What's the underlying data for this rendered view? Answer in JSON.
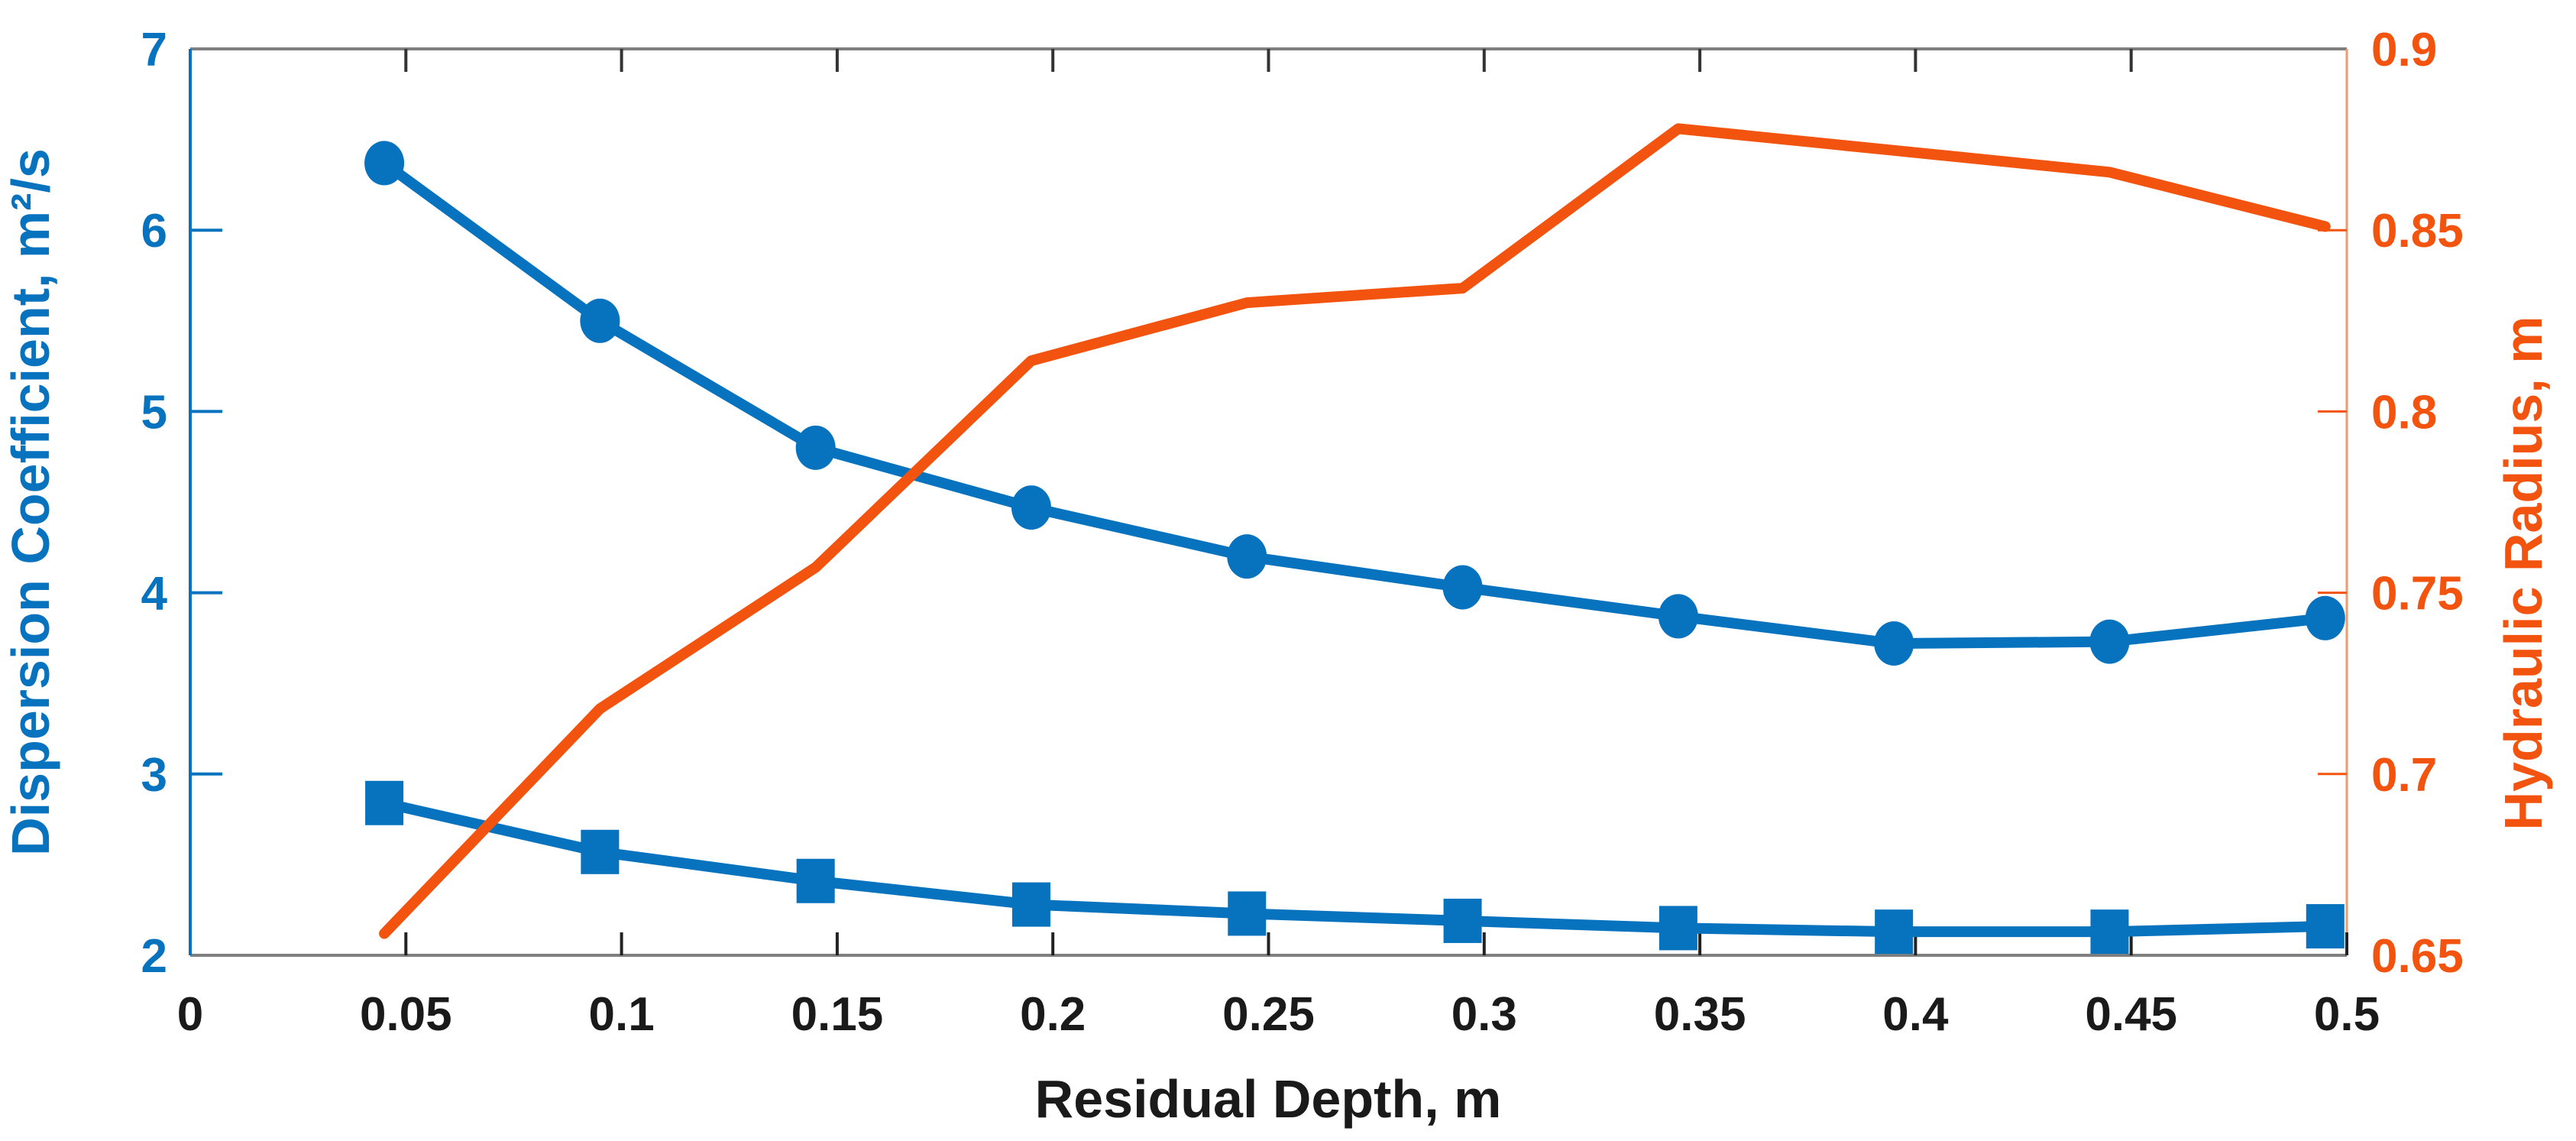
{
  "chart_data": {
    "type": "line",
    "title": "",
    "xlabel": "Residual Depth, m",
    "ylabel_left": "Dispersion Coefficient, m²/s",
    "ylabel_right": "Hydraulic Radius, m",
    "xlim": [
      0,
      0.5
    ],
    "ylim_left": [
      2,
      7
    ],
    "ylim_right": [
      0.65,
      0.9
    ],
    "grid": "off",
    "legend": "none",
    "box": "on",
    "x_tick_labels": [
      {
        "v": 0.0,
        "t": "0"
      },
      {
        "v": 0.05,
        "t": "0.05"
      },
      {
        "v": 0.1,
        "t": "0.1"
      },
      {
        "v": 0.15,
        "t": "0.15"
      },
      {
        "v": 0.2,
        "t": "0.2"
      },
      {
        "v": 0.25,
        "t": "0.25"
      },
      {
        "v": 0.3,
        "t": "0.3"
      },
      {
        "v": 0.35,
        "t": "0.35"
      },
      {
        "v": 0.4,
        "t": "0.4"
      },
      {
        "v": 0.45,
        "t": "0.45"
      },
      {
        "v": 0.5,
        "t": "0.5"
      }
    ],
    "x_tick_marks_bottom": [
      0.05,
      0.1,
      0.15,
      0.2,
      0.25,
      0.3,
      0.35,
      0.4,
      0.45,
      0.5
    ],
    "x_tick_marks_top": [
      0.05,
      0.1,
      0.15,
      0.2,
      0.25,
      0.3,
      0.35,
      0.4,
      0.45
    ],
    "left_tick_labels": [
      {
        "v": 2,
        "t": "2"
      },
      {
        "v": 3,
        "t": "3"
      },
      {
        "v": 4,
        "t": "4"
      },
      {
        "v": 5,
        "t": "5"
      },
      {
        "v": 6,
        "t": "6"
      },
      {
        "v": 7,
        "t": "7"
      }
    ],
    "left_tick_marks": [
      3,
      4,
      5,
      6
    ],
    "right_tick_labels": [
      {
        "v": 0.65,
        "t": "0.65"
      },
      {
        "v": 0.7,
        "t": "0.7"
      },
      {
        "v": 0.75,
        "t": "0.75"
      },
      {
        "v": 0.8,
        "t": "0.8"
      },
      {
        "v": 0.85,
        "t": "0.85"
      },
      {
        "v": 0.9,
        "t": "0.9"
      }
    ],
    "right_tick_marks": [
      0.7,
      0.75,
      0.8,
      0.85
    ],
    "x": [
      0.045,
      0.095,
      0.145,
      0.195,
      0.245,
      0.295,
      0.345,
      0.395,
      0.445,
      0.495
    ],
    "series": [
      {
        "name": "dispersion-coefficient-circle-series",
        "axis": "left",
        "marker": "circle",
        "color": "#0772bd",
        "values": [
          6.37,
          5.5,
          4.8,
          4.47,
          4.2,
          4.03,
          3.87,
          3.72,
          3.73,
          3.86
        ]
      },
      {
        "name": "dispersion-coefficient-square-series",
        "axis": "left",
        "marker": "square",
        "color": "#0772bd",
        "values": [
          2.84,
          2.57,
          2.41,
          2.28,
          2.23,
          2.19,
          2.15,
          2.13,
          2.13,
          2.16
        ]
      },
      {
        "name": "hydraulic-radius-series",
        "axis": "right",
        "marker": "none",
        "color": "#f2530e",
        "values": [
          0.656,
          0.718,
          0.757,
          0.814,
          0.83,
          0.834,
          0.878,
          0.872,
          0.866,
          0.851
        ]
      }
    ],
    "colors": {
      "left_axis": "#0772bd",
      "right_axis": "#f2530e",
      "frame": "#7f7f7f",
      "x_text": "#1a1a1a"
    }
  }
}
